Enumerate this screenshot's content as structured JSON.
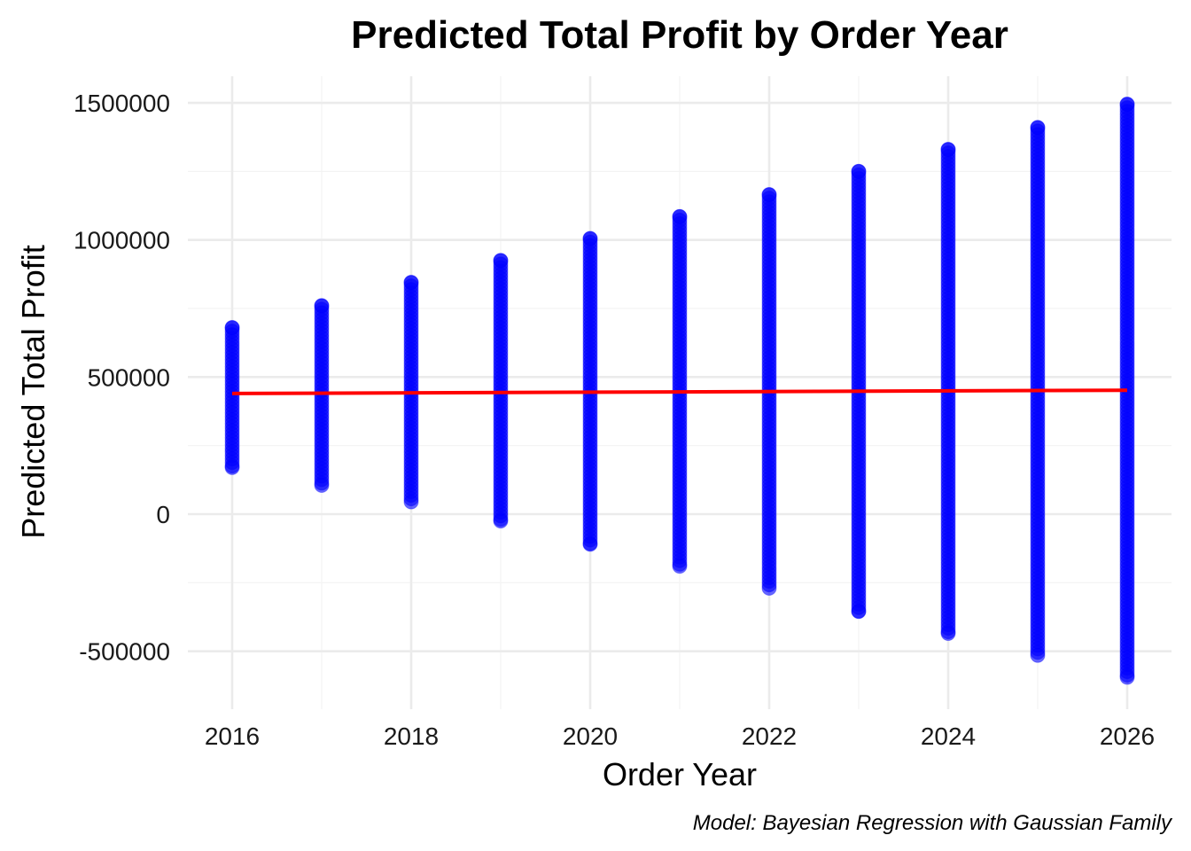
{
  "chart_data": {
    "type": "scatter",
    "title": "Predicted Total Profit by Order Year",
    "xlabel": "Order Year",
    "ylabel": "Predicted Total Profit",
    "caption": "Model: Bayesian Regression with Gaussian Family",
    "xlim": [
      2015.5,
      2026.5
    ],
    "ylim": [
      -700000,
      1600000
    ],
    "x_ticks": [
      2016,
      2018,
      2020,
      2022,
      2024,
      2026
    ],
    "y_ticks": [
      -500000,
      0,
      500000,
      1000000,
      1500000
    ],
    "y_tick_labels": [
      "-500000",
      "0",
      "500000",
      "1000000",
      "1500000"
    ],
    "grid": true,
    "point_color": "#0000ff",
    "line_color": "#ff0000",
    "series": [
      {
        "kind": "points",
        "ranges": [
          {
            "x": 2016,
            "min": 170000,
            "max": 680000,
            "outliers": []
          },
          {
            "x": 2017,
            "min": 105000,
            "max": 760000,
            "outliers": []
          },
          {
            "x": 2018,
            "min": 45000,
            "max": 845000,
            "outliers": []
          },
          {
            "x": 2019,
            "min": -25000,
            "max": 925000,
            "outliers": []
          },
          {
            "x": 2020,
            "min": -110000,
            "max": 1005000,
            "outliers": []
          },
          {
            "x": 2021,
            "min": -190000,
            "max": 1085000,
            "outliers": []
          },
          {
            "x": 2022,
            "min": -270000,
            "max": 1165000,
            "outliers": []
          },
          {
            "x": 2023,
            "min": -355000,
            "max": 1250000,
            "outliers": []
          },
          {
            "x": 2024,
            "min": -435000,
            "max": 1330000,
            "outliers": []
          },
          {
            "x": 2025,
            "min": -515000,
            "max": 1410000,
            "outliers": []
          },
          {
            "x": 2026,
            "min": -595000,
            "max": 1495000,
            "outliers": []
          }
        ]
      },
      {
        "kind": "line",
        "x": [
          2016,
          2026
        ],
        "y": [
          440000,
          452000
        ]
      }
    ]
  }
}
